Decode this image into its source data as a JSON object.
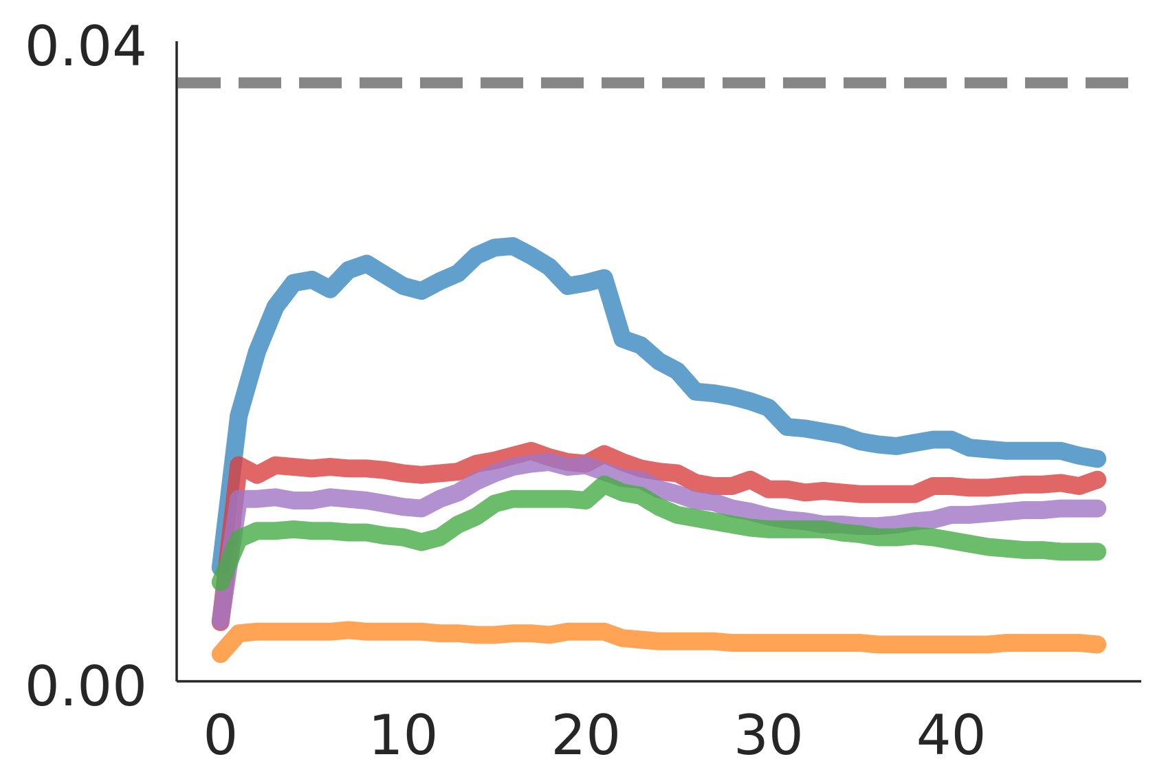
{
  "chart_data": {
    "type": "line",
    "title": "",
    "xlabel": "",
    "ylabel": "",
    "xlim": [
      -2.4,
      50.4
    ],
    "ylim": [
      0.0,
      0.04
    ],
    "x_ticks": [
      0,
      10,
      20,
      30,
      40
    ],
    "y_ticks": [
      0.0,
      0.04
    ],
    "y_tick_labels": [
      "0.00",
      "0.04"
    ],
    "grid": false,
    "reference_line": {
      "y": 0.0374,
      "style": "dashed",
      "color": "#808080"
    },
    "x": [
      0,
      1,
      2,
      3,
      4,
      5,
      6,
      7,
      8,
      9,
      10,
      11,
      12,
      13,
      14,
      15,
      16,
      17,
      18,
      19,
      20,
      21,
      22,
      23,
      24,
      25,
      26,
      27,
      28,
      29,
      30,
      31,
      32,
      33,
      34,
      35,
      36,
      37,
      38,
      39,
      40,
      41,
      42,
      43,
      44,
      45,
      46,
      47,
      48
    ],
    "series": [
      {
        "color": "#3a87c0",
        "values": [
          0.0071,
          0.0166,
          0.0206,
          0.0234,
          0.0249,
          0.0251,
          0.0245,
          0.0257,
          0.0261,
          0.0254,
          0.0247,
          0.0244,
          0.025,
          0.0255,
          0.0266,
          0.0271,
          0.0272,
          0.0266,
          0.0259,
          0.0247,
          0.0249,
          0.0252,
          0.0214,
          0.021,
          0.02,
          0.0194,
          0.0181,
          0.018,
          0.0178,
          0.0175,
          0.0171,
          0.0159,
          0.0158,
          0.0156,
          0.0154,
          0.015,
          0.0148,
          0.0147,
          0.0149,
          0.0151,
          0.0151,
          0.0146,
          0.0145,
          0.0144,
          0.0144,
          0.0144,
          0.0144,
          0.0141,
          0.0139
        ]
      },
      {
        "color": "#d94040",
        "values": [
          0.0037,
          0.0135,
          0.0129,
          0.0135,
          0.0134,
          0.0133,
          0.0134,
          0.0133,
          0.0133,
          0.0132,
          0.013,
          0.0129,
          0.013,
          0.0131,
          0.0136,
          0.0138,
          0.0141,
          0.0144,
          0.014,
          0.0137,
          0.0136,
          0.0142,
          0.0137,
          0.0133,
          0.0131,
          0.013,
          0.0124,
          0.0122,
          0.0122,
          0.0126,
          0.012,
          0.012,
          0.0118,
          0.0119,
          0.0118,
          0.0117,
          0.0117,
          0.0117,
          0.0117,
          0.0122,
          0.0122,
          0.0121,
          0.0121,
          0.0122,
          0.0123,
          0.0123,
          0.0124,
          0.0122,
          0.0126
        ]
      },
      {
        "color": "#a076c4",
        "values": [
          0.0038,
          0.0114,
          0.0114,
          0.0115,
          0.0113,
          0.0113,
          0.0115,
          0.0114,
          0.0113,
          0.0111,
          0.0109,
          0.0108,
          0.0114,
          0.0118,
          0.0125,
          0.013,
          0.0134,
          0.0136,
          0.0137,
          0.0134,
          0.0135,
          0.0131,
          0.0127,
          0.0126,
          0.012,
          0.0117,
          0.0113,
          0.0112,
          0.0108,
          0.0106,
          0.0103,
          0.0101,
          0.01,
          0.0098,
          0.0098,
          0.0097,
          0.0097,
          0.0098,
          0.01,
          0.0101,
          0.0104,
          0.0104,
          0.0105,
          0.0106,
          0.0107,
          0.0107,
          0.0108,
          0.0108,
          0.0108
        ]
      },
      {
        "color": "#46ab46",
        "values": [
          0.0062,
          0.0089,
          0.0094,
          0.0094,
          0.0095,
          0.0094,
          0.0094,
          0.0093,
          0.0093,
          0.0091,
          0.009,
          0.0087,
          0.009,
          0.0098,
          0.0103,
          0.0111,
          0.0114,
          0.0114,
          0.0114,
          0.0114,
          0.0113,
          0.0123,
          0.0118,
          0.0116,
          0.0109,
          0.0104,
          0.0102,
          0.01,
          0.0098,
          0.0096,
          0.0095,
          0.0095,
          0.0095,
          0.0095,
          0.0093,
          0.0092,
          0.009,
          0.009,
          0.0091,
          0.009,
          0.0088,
          0.0086,
          0.0084,
          0.0083,
          0.0082,
          0.0082,
          0.0081,
          0.0081,
          0.0081
        ]
      },
      {
        "color": "#ff8c2a",
        "values": [
          0.0017,
          0.003,
          0.0031,
          0.0031,
          0.0031,
          0.0031,
          0.0031,
          0.0032,
          0.0031,
          0.0031,
          0.0031,
          0.0031,
          0.003,
          0.003,
          0.0029,
          0.0029,
          0.003,
          0.003,
          0.0029,
          0.0031,
          0.0031,
          0.0031,
          0.0027,
          0.0026,
          0.0025,
          0.0025,
          0.0025,
          0.0025,
          0.0024,
          0.0024,
          0.0024,
          0.0024,
          0.0024,
          0.0024,
          0.0024,
          0.0024,
          0.0023,
          0.0023,
          0.0023,
          0.0023,
          0.0023,
          0.0023,
          0.0023,
          0.0024,
          0.0024,
          0.0024,
          0.0024,
          0.0024,
          0.0023
        ]
      }
    ]
  }
}
